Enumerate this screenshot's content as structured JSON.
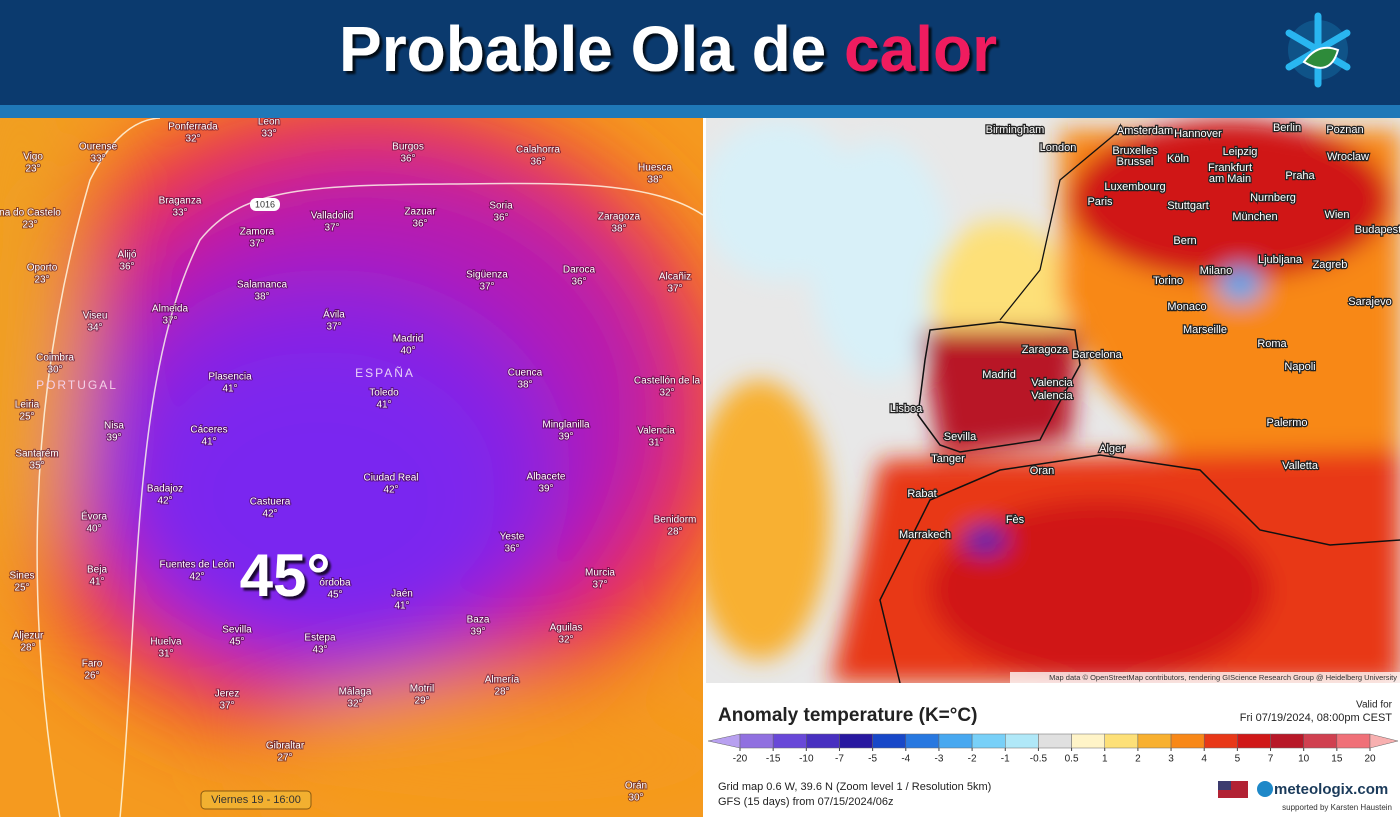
{
  "header": {
    "title_main": "Probable Ola de",
    "title_highlight": "calor"
  },
  "left_map": {
    "big_label": "45°",
    "pressure_label": "1016",
    "time_label": "Viernes 19 - 16:00",
    "region_labels": [
      "PORTUGAL",
      "ESPAÑA"
    ],
    "cities": [
      {
        "name": "Leon",
        "temp": "33°"
      },
      {
        "name": "Ponferrada",
        "temp": "32°"
      },
      {
        "name": "Ourense",
        "temp": "33°"
      },
      {
        "name": "Burgos",
        "temp": "36°"
      },
      {
        "name": "Calahorra",
        "temp": "36°"
      },
      {
        "name": "Huesca",
        "temp": "38°"
      },
      {
        "name": "Vigo",
        "temp": "23°"
      },
      {
        "name": "Braganza",
        "temp": "33°"
      },
      {
        "name": "Valladolid",
        "temp": "37°"
      },
      {
        "name": "Zazuar",
        "temp": "36°"
      },
      {
        "name": "Soria",
        "temp": "36°"
      },
      {
        "name": "Zaragoza",
        "temp": "38°"
      },
      {
        "name": "na do Castelo",
        "temp": "23°"
      },
      {
        "name": "Zamora",
        "temp": "37°"
      },
      {
        "name": "Alijó",
        "temp": "36°"
      },
      {
        "name": "Oporto",
        "temp": "23°"
      },
      {
        "name": "Sigüenza",
        "temp": "37°"
      },
      {
        "name": "Daroca",
        "temp": "36°"
      },
      {
        "name": "Alcañiz",
        "temp": "37°"
      },
      {
        "name": "Salamanca",
        "temp": "38°"
      },
      {
        "name": "Almeida",
        "temp": "37°"
      },
      {
        "name": "Ávila",
        "temp": "37°"
      },
      {
        "name": "Viseu",
        "temp": "34°"
      },
      {
        "name": "Madrid",
        "temp": "40°"
      },
      {
        "name": "Coimbra",
        "temp": "30°"
      },
      {
        "name": "Plasencia",
        "temp": "41°"
      },
      {
        "name": "Toledo",
        "temp": "41°"
      },
      {
        "name": "Cuenca",
        "temp": "38°"
      },
      {
        "name": "Castellón de la",
        "temp": "32°"
      },
      {
        "name": "Leiria",
        "temp": "25°"
      },
      {
        "name": "Nisa",
        "temp": "39°"
      },
      {
        "name": "Cáceres",
        "temp": "41°"
      },
      {
        "name": "Minglanilla",
        "temp": "39°"
      },
      {
        "name": "Valencia",
        "temp": "31°"
      },
      {
        "name": "Santarém",
        "temp": "35°"
      },
      {
        "name": "Ciudad Real",
        "temp": "42°"
      },
      {
        "name": "Albacete",
        "temp": "39°"
      },
      {
        "name": "Badajoz",
        "temp": "42°"
      },
      {
        "name": "Castuera",
        "temp": "42°"
      },
      {
        "name": "Évora",
        "temp": "40°"
      },
      {
        "name": "Benidorm",
        "temp": "28°"
      },
      {
        "name": "Yeste",
        "temp": "36°"
      },
      {
        "name": "Fuentes de León",
        "temp": "42°"
      },
      {
        "name": "Beja",
        "temp": "41°"
      },
      {
        "name": "Murcia",
        "temp": "37°"
      },
      {
        "name": "órdoba",
        "temp": "45°"
      },
      {
        "name": "Jaén",
        "temp": "41°"
      },
      {
        "name": "Sines",
        "temp": "25°"
      },
      {
        "name": "Sevilla",
        "temp": "45°"
      },
      {
        "name": "Estepa",
        "temp": "43°"
      },
      {
        "name": "Baza",
        "temp": "39°"
      },
      {
        "name": "Aguilas",
        "temp": "32°"
      },
      {
        "name": "Aljezur",
        "temp": "28°"
      },
      {
        "name": "Huelva",
        "temp": "31°"
      },
      {
        "name": "Faro",
        "temp": "26°"
      },
      {
        "name": "Almería",
        "temp": "28°"
      },
      {
        "name": "Jerez",
        "temp": "37°"
      },
      {
        "name": "Málaga",
        "temp": "32°"
      },
      {
        "name": "Motril",
        "temp": "29°"
      },
      {
        "name": "Gibraltar",
        "temp": "27°"
      },
      {
        "name": "Orán",
        "temp": "30°"
      }
    ]
  },
  "right_map": {
    "attribution": "Map data © OpenStreetMap contributors, rendering GIScience Research Group @ Heidelberg University",
    "cities": [
      "Birmingham",
      "London",
      "Amsterdam",
      "Hannover",
      "Berlin",
      "Poznan",
      "Bruxelles",
      "Brussel",
      "Köln",
      "Leipzig",
      "Wroclaw",
      "Frankfurt",
      "am Main",
      "Praha",
      "Luxembourg",
      "Paris",
      "Stuttgart",
      "Nurnberg",
      "München",
      "Wien",
      "Budapest",
      "Bern",
      "Zagreb",
      "Ljubljana",
      "Milano",
      "Torino",
      "Monaco",
      "Marseille",
      "Sarajevo",
      "Zaragoza",
      "Barcelona",
      "Madrid",
      "Valencia",
      "Valencia",
      "Roma",
      "Lisboa",
      "Napoli",
      "Palermo",
      "Sevilla",
      "Tanger",
      "Oran",
      "Alger",
      "Valletta",
      "Rabat",
      "Fès",
      "Marrakech"
    ]
  },
  "legend": {
    "title": "Anomaly temperature (K=°C)",
    "valid_label": "Valid for",
    "valid_date": "Fri 07/19/2024, 08:00pm CEST",
    "ticks": [
      -20,
      -15,
      -10,
      -7,
      -5,
      -4,
      -3,
      -2,
      -1,
      -0.5,
      0.5,
      1,
      2,
      3,
      4,
      5,
      7,
      10,
      15,
      20
    ],
    "colors": [
      "#b8a0f0",
      "#9070e0",
      "#6848d8",
      "#4830c0",
      "#2818a0",
      "#1848c8",
      "#2878e0",
      "#48a8f0",
      "#78d0f8",
      "#b0e8f8",
      "#e0e0e0",
      "#fff4c8",
      "#fde078",
      "#f8b030",
      "#f88818",
      "#e83818",
      "#d01818",
      "#b81828",
      "#d04050",
      "#f07078",
      "#f8b0b0"
    ],
    "grid_info": "Grid map 0.6 W, 39.6 N (Zoom level 1 / Resolution 5km)",
    "model_info": "GFS (15 days) from 07/15/2024/06z",
    "brand": "meteologix.com",
    "supported_by": "supported by Karsten Haustein"
  }
}
